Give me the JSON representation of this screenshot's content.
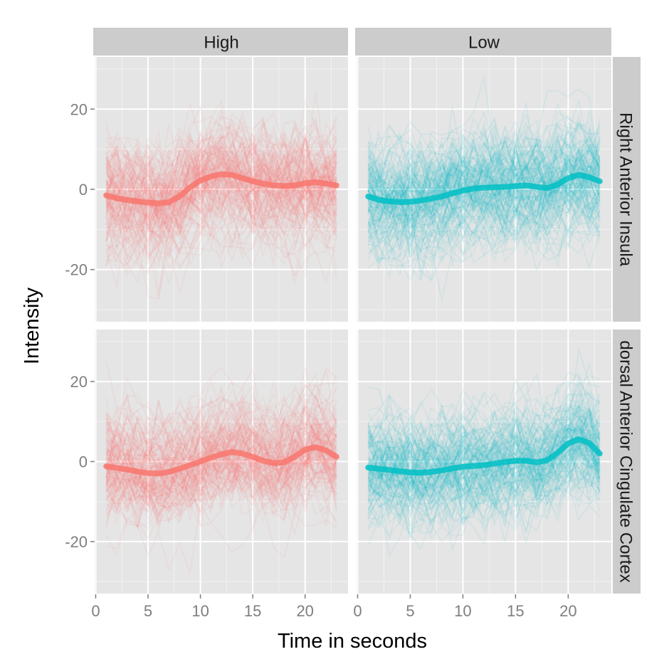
{
  "chart_data": {
    "type": "line",
    "xlabel": "Time in seconds",
    "ylabel": "Intensity",
    "xlim": [
      -0.1,
      24.1
    ],
    "ylim": [
      -33,
      33
    ],
    "x_ticks": [
      0,
      5,
      10,
      15,
      20
    ],
    "y_ticks": [
      -20,
      0,
      20
    ],
    "grid": true,
    "legend": "none",
    "facet_columns": [
      "High",
      "Low"
    ],
    "facet_rows": [
      "Right Anterior Insula",
      "dorsal Anterior Cingulate Cortex"
    ],
    "colors": {
      "High": "#f8766d",
      "Low": "#00bfc4"
    },
    "x": [
      1,
      2,
      3,
      4,
      5,
      6,
      7,
      8,
      9,
      10,
      11,
      12,
      13,
      14,
      15,
      16,
      17,
      18,
      19,
      20,
      21,
      22,
      23
    ],
    "panels": [
      {
        "column": "High",
        "row": "Right Anterior Insula",
        "trend": [
          -1.5,
          -2.2,
          -2.7,
          -3.0,
          -3.3,
          -3.5,
          -3.2,
          -1.8,
          0.5,
          2.2,
          3.2,
          3.8,
          3.6,
          2.8,
          2.0,
          1.4,
          1.0,
          0.8,
          1.0,
          1.5,
          1.8,
          1.4,
          1.0
        ],
        "spread": 10,
        "individual_lines": 160
      },
      {
        "column": "Low",
        "row": "Right Anterior Insula",
        "trend": [
          -1.8,
          -2.6,
          -3.0,
          -3.2,
          -3.1,
          -2.8,
          -2.3,
          -1.8,
          -1.0,
          -0.3,
          0.2,
          0.4,
          0.5,
          0.6,
          0.8,
          1.0,
          0.6,
          0.3,
          1.2,
          2.8,
          3.6,
          3.0,
          2.0
        ],
        "spread": 10,
        "individual_lines": 160
      },
      {
        "column": "High",
        "row": "dorsal Anterior Cingulate Cortex",
        "trend": [
          -1.2,
          -1.6,
          -2.0,
          -2.5,
          -2.9,
          -3.0,
          -2.6,
          -1.8,
          -0.9,
          0.0,
          1.0,
          1.8,
          2.4,
          2.0,
          1.2,
          0.2,
          -0.4,
          -0.2,
          1.2,
          3.0,
          3.6,
          2.8,
          1.2
        ],
        "spread": 9,
        "individual_lines": 160
      },
      {
        "column": "Low",
        "row": "dorsal Anterior Cingulate Cortex",
        "trend": [
          -1.5,
          -1.8,
          -2.1,
          -2.4,
          -2.7,
          -2.8,
          -2.6,
          -2.2,
          -1.7,
          -1.3,
          -1.1,
          -0.9,
          -0.5,
          -0.1,
          0.2,
          0.2,
          -0.2,
          0.3,
          2.2,
          4.5,
          5.6,
          4.6,
          2.0
        ],
        "spread": 9,
        "individual_lines": 160
      }
    ]
  }
}
